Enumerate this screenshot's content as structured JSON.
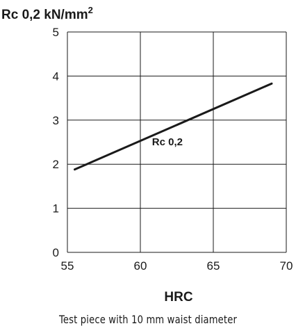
{
  "chart_data": {
    "type": "line",
    "ylabel_main": "Rc 0,2 kN/mm",
    "ylabel_sup": "2",
    "xlabel": "HRC",
    "xlim": [
      55,
      70
    ],
    "ylim": [
      0,
      5
    ],
    "xticks": [
      "55",
      "60",
      "65",
      "70"
    ],
    "yticks": [
      "0",
      "1",
      "2",
      "3",
      "4",
      "5"
    ],
    "grid": true,
    "series": [
      {
        "name": "Rc 0,2",
        "x": [
          55.5,
          69.0
        ],
        "y": [
          1.88,
          3.83
        ]
      }
    ],
    "line_color": "#1a1a1a"
  },
  "caption": "Test piece with 10 mm waist diameter"
}
